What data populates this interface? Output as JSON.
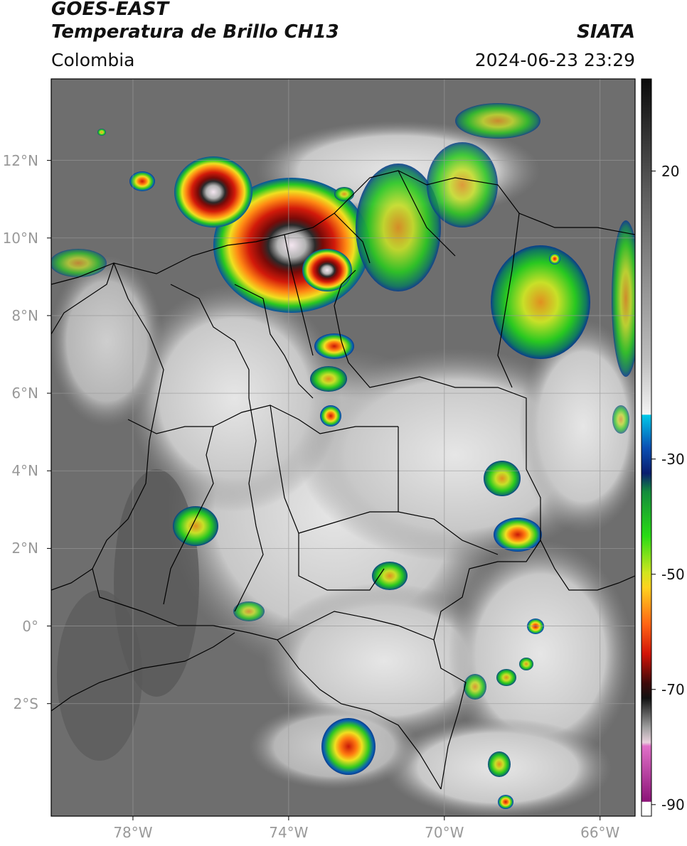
{
  "header": {
    "satellite": "GOES-EAST",
    "product": "Temperatura de Brillo CH13",
    "brand": "SIATA",
    "region": "Colombia",
    "timestamp": "2024-06-23 23:29"
  },
  "axes": {
    "lat_labels": [
      "12°N",
      "10°N",
      "8°N",
      "6°N",
      "4°N",
      "2°N",
      "0°",
      "2°S"
    ],
    "lat_values": [
      12,
      10,
      8,
      6,
      4,
      2,
      0,
      -2
    ],
    "lon_labels": [
      "78°W",
      "74°W",
      "70°W",
      "66°W"
    ],
    "lon_values": [
      -78,
      -74,
      -70,
      -66
    ],
    "lat_range": [
      -4.9,
      14.1
    ],
    "lon_range": [
      -80.1,
      -65.1
    ]
  },
  "colorbar": {
    "ticks": [
      "20",
      "-30",
      "-50",
      "-70",
      "-90"
    ],
    "tick_values": [
      20,
      -30,
      -50,
      -70,
      -90
    ],
    "range": [
      -92,
      36
    ],
    "units": ""
  },
  "colors": {
    "background_gray": "#6e6e6e",
    "cloud_white": "#dcdcdc",
    "cold_green": "#22c61e",
    "cold_yellow": "#f0e61e",
    "cold_red": "#d21a0a",
    "coldest_magenta": "#c832b4"
  }
}
